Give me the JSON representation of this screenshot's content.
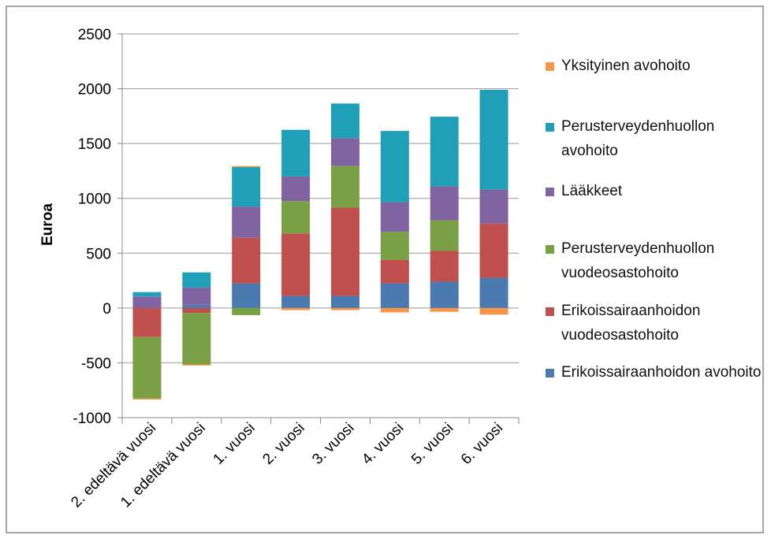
{
  "chart_data": {
    "type": "bar",
    "stacked": true,
    "y_label": "Euroa",
    "categories": [
      "2. edeltävä vuosi",
      "1. edeltävä vuosi",
      "1. vuosi",
      "2. vuosi",
      "3. vuosi",
      "4. vuosi",
      "5. vuosi",
      "6. vuosi"
    ],
    "series": [
      {
        "name": "Erikoissairaanhoidon avohoito",
        "color": "#4a7ab0",
        "values": [
          0,
          30,
          225,
          110,
          110,
          225,
          240,
          275
        ]
      },
      {
        "name": "Erikoissairaanhoidon vuodeosastohoito",
        "color": "#c0504d",
        "values": [
          -265,
          -45,
          415,
          570,
          805,
          215,
          280,
          495
        ]
      },
      {
        "name": "Perusterveydenhuollon vuodeosastohoito",
        "color": "#79a044",
        "values": [
          -560,
          -470,
          -65,
          295,
          380,
          255,
          280,
          0
        ]
      },
      {
        "name": "Lääkkeet",
        "color": "#8064a2",
        "values": [
          105,
          155,
          285,
          225,
          255,
          270,
          310,
          310
        ]
      },
      {
        "name": "Perusterveydenhuollon avohoito",
        "color": "#20a0b8",
        "values": [
          40,
          140,
          360,
          425,
          315,
          650,
          635,
          910
        ]
      },
      {
        "name": "Yksityinen avohoito",
        "color": "#f79646",
        "values": [
          -10,
          -10,
          10,
          -20,
          -20,
          -40,
          -35,
          -60
        ]
      }
    ],
    "ylim": [
      -1000,
      2500
    ],
    "yticks": [
      -1000,
      -500,
      0,
      500,
      1000,
      1500,
      2000,
      2500
    ],
    "grid": true,
    "legend": "right"
  }
}
